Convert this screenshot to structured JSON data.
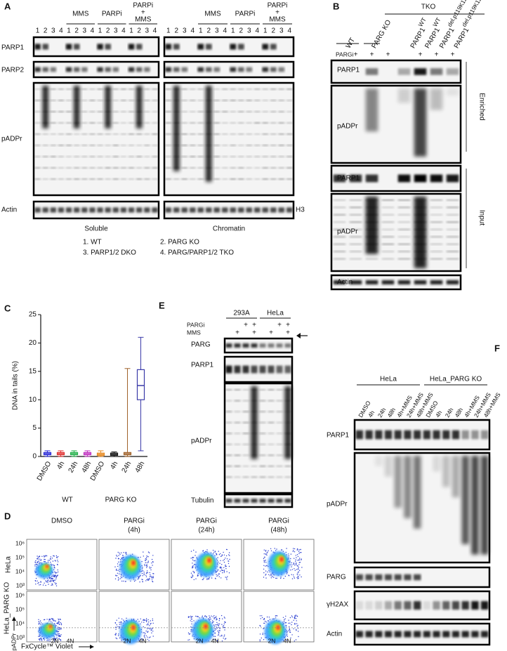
{
  "panel_a": {
    "label": "A",
    "treatments": [
      [
        "MMS"
      ],
      [
        "PARPi"
      ],
      [
        "PARPi",
        "+",
        "MMS"
      ]
    ],
    "lanes": [
      "1",
      "2",
      "3",
      "4"
    ],
    "blots": [
      "PARP1",
      "PARP2",
      "pADPr",
      "Actin"
    ],
    "chromatin_loading": "H3",
    "fractions": [
      "Soluble",
      "Chromatin"
    ],
    "legend": [
      "1. WT",
      "2. PARG KO",
      "3. PARP1/2 DKO",
      "4. PARG/PARP1/2 TKO"
    ]
  },
  "panel_b": {
    "label": "B",
    "group": "TKO",
    "samples": [
      {
        "name": "WT"
      },
      {
        "name": "PARG KO"
      },
      {
        "name": "PARP1",
        "sup": "WT"
      },
      {
        "name": "PARP1",
        "sup": "WT"
      },
      {
        "name": "PARP1",
        "sup": "del.p119K120S"
      },
      {
        "name": "PARP1",
        "sup": "del.p119K120S"
      }
    ],
    "treatment": "PARGi",
    "treatment_signs": [
      null,
      "+",
      "+",
      "+",
      null,
      "+",
      "+",
      "+"
    ],
    "blots": [
      "PARP1",
      "pADPr",
      "PARP1",
      "pADPr",
      "Actin"
    ],
    "sections": [
      "Enriched",
      "Input"
    ]
  },
  "chart_data": {
    "type": "box",
    "label": "C",
    "ylabel": "DNA in tails (%)",
    "categories": [
      "DMSO",
      "4h",
      "24h",
      "48h",
      "DMSO",
      "4h",
      "24h",
      "48h"
    ],
    "groups": [
      "WT",
      "PARG KO"
    ],
    "stats": [
      [
        0,
        0.3,
        0.5,
        0.7,
        1
      ],
      [
        0,
        0.3,
        0.5,
        0.7,
        1
      ],
      [
        0,
        0.3,
        0.5,
        0.7,
        1
      ],
      [
        0,
        0.3,
        0.5,
        0.7,
        1
      ],
      [
        0,
        0.2,
        0.4,
        0.6,
        1
      ],
      [
        0,
        0.2,
        0.4,
        0.6,
        0.8
      ],
      [
        0,
        0.3,
        0.5,
        0.7,
        15.5
      ],
      [
        1,
        10,
        12.5,
        15.3,
        21
      ]
    ],
    "colors": [
      "#2a2ad8",
      "#e03030",
      "#22b04a",
      "#c030c0",
      "#e88a20",
      "#111111",
      "#a0622a",
      "#3a3aa8"
    ],
    "ylim": [
      0,
      25
    ],
    "yticks": [
      0,
      5,
      10,
      15,
      20,
      25
    ]
  },
  "panel_d": {
    "label": "D",
    "conditions": [
      [
        "DMSO"
      ],
      [
        "PARGi",
        "(4h)"
      ],
      [
        "PARGi",
        "(24h)"
      ],
      [
        "PARGi",
        "(48h)"
      ]
    ],
    "rows": [
      "HeLa",
      "HeLa_PARG KO"
    ],
    "yticks": [
      "10⁶",
      "10⁵",
      "10⁴",
      "10³"
    ],
    "y_label": "pADPr",
    "xticks": [
      "2N",
      "4N"
    ],
    "x_label": "FxCycle™ Violet"
  },
  "panel_e": {
    "label": "E",
    "cell_lines": [
      "293A",
      "HeLa"
    ],
    "treatments": [
      {
        "name": "PARGi",
        "signs": [
          null,
          null,
          "+",
          "+",
          null,
          null,
          "+",
          "+"
        ]
      },
      {
        "name": "MMS",
        "signs": [
          null,
          "+",
          null,
          "+",
          null,
          "+",
          null,
          "+"
        ]
      }
    ],
    "blots": [
      "PARG",
      "PARP1",
      "pADPr",
      "Tubulin"
    ]
  },
  "panel_f": {
    "label": "F",
    "cell_lines": [
      "HeLa",
      "HeLa_PARG KO"
    ],
    "lanes": [
      "DMSO",
      "4h",
      "24h",
      "48h",
      "4h+MMS",
      "24h+MMS",
      "48h+MMS"
    ],
    "blots": [
      "PARP1",
      "pADPr",
      "PARG",
      "γH2AX",
      "Actin"
    ]
  }
}
